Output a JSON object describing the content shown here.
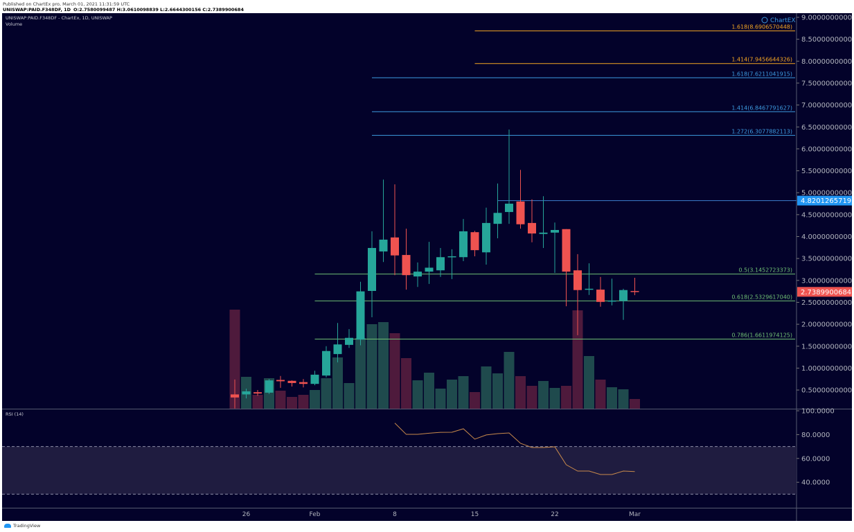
{
  "header": {
    "published": "Published on ChartEx pro, March 01, 2021 11:31:59 UTC",
    "symbol": "UNISWAP:PAID.F348DF, 1D",
    "ohlc": "O:2.7580099487 H:3.0610098839 L:2.6644300156 C:2.7389900684"
  },
  "legend": {
    "title": "UNISWAP:PAID.F348DF - ChartEx, 1D, UNISWAP",
    "volume": "Volume",
    "rsi": "RSI (14)"
  },
  "branding": {
    "chartex": "ChartEX",
    "tradingview": "TradingView"
  },
  "colors": {
    "background": "#03022a",
    "up": "#26a69a",
    "down": "#ef5350",
    "up_volume": "#1f4a4d",
    "down_volume": "#4e1a3c",
    "fib_orange": "#f5a623",
    "fib_blue": "#3d9be0",
    "fib_green": "#6fbf73",
    "rsi_line": "#c98a4b",
    "axis_text": "#b2b5be"
  },
  "chart_data": {
    "type": "candlestick",
    "title": "UNISWAP:PAID.F348DF - ChartEx, 1D, UNISWAP",
    "x_tick_labels": [
      {
        "i": 1,
        "label": "26"
      },
      {
        "i": 7,
        "label": "Feb"
      },
      {
        "i": 14,
        "label": "8"
      },
      {
        "i": 21,
        "label": "15"
      },
      {
        "i": 28,
        "label": "22"
      },
      {
        "i": 35,
        "label": "Mar"
      }
    ],
    "price_ylim": [
      0,
      9
    ],
    "price_ticks": [
      9.0,
      8.5,
      8.0,
      7.5,
      7.0,
      6.5,
      6.0,
      5.5,
      5.0,
      4.5,
      4.0,
      3.5,
      3.0,
      2.5,
      2.0,
      1.5,
      1.0,
      0.5
    ],
    "candles": [
      [
        0.4,
        0.74,
        0.08,
        0.33
      ],
      [
        0.4,
        0.53,
        0.31,
        0.47
      ],
      [
        0.45,
        0.5,
        0.37,
        0.42
      ],
      [
        0.44,
        0.75,
        0.41,
        0.72
      ],
      [
        0.73,
        0.82,
        0.55,
        0.7
      ],
      [
        0.71,
        0.72,
        0.58,
        0.66
      ],
      [
        0.68,
        0.75,
        0.56,
        0.64
      ],
      [
        0.64,
        0.94,
        0.61,
        0.85
      ],
      [
        0.83,
        1.5,
        0.79,
        1.39
      ],
      [
        1.32,
        2.03,
        1.13,
        1.54
      ],
      [
        1.53,
        1.89,
        1.46,
        1.69
      ],
      [
        1.65,
        2.97,
        1.52,
        2.75
      ],
      [
        2.76,
        4.12,
        2.16,
        3.74
      ],
      [
        3.66,
        5.3,
        3.42,
        3.93
      ],
      [
        3.98,
        5.19,
        3.12,
        3.57
      ],
      [
        3.58,
        4.18,
        2.79,
        3.12
      ],
      [
        3.09,
        3.41,
        2.85,
        3.2
      ],
      [
        3.2,
        3.88,
        2.92,
        3.29
      ],
      [
        3.23,
        3.74,
        3.08,
        3.53
      ],
      [
        3.53,
        3.71,
        3.03,
        3.55
      ],
      [
        3.53,
        4.4,
        3.44,
        4.12
      ],
      [
        4.1,
        4.13,
        3.55,
        3.69
      ],
      [
        3.64,
        4.66,
        3.36,
        4.31
      ],
      [
        4.29,
        5.21,
        3.96,
        4.54
      ],
      [
        4.56,
        6.44,
        4.29,
        4.75
      ],
      [
        4.8,
        5.52,
        4.18,
        4.28
      ],
      [
        4.31,
        4.85,
        3.87,
        4.07
      ],
      [
        4.06,
        4.92,
        3.74,
        4.09
      ],
      [
        4.09,
        4.32,
        3.17,
        4.15
      ],
      [
        4.17,
        4.17,
        2.41,
        3.2
      ],
      [
        3.23,
        3.6,
        1.75,
        2.78
      ],
      [
        2.79,
        3.39,
        2.67,
        2.81
      ],
      [
        2.79,
        3.08,
        2.4,
        2.51
      ],
      [
        2.53,
        3.04,
        2.43,
        2.54
      ],
      [
        2.53,
        2.81,
        2.1,
        2.78
      ],
      [
        2.758,
        3.061,
        2.664,
        2.739
      ]
    ],
    "candle_format": "[open, high, low, close]",
    "volume_relative": [
      143,
      46,
      20,
      44,
      26,
      17,
      20,
      27,
      44,
      74,
      37,
      102,
      122,
      125,
      109,
      73,
      41,
      52,
      29,
      42,
      47,
      24,
      61,
      51,
      82,
      47,
      33,
      40,
      30,
      33,
      142,
      76,
      42,
      31,
      28,
      14
    ],
    "rsi": {
      "start_index": 14,
      "values": [
        89.7,
        80.2,
        80.2,
        81.2,
        81.9,
        82.0,
        84.9,
        76.2,
        79.7,
        80.8,
        81.4,
        72.7,
        69.2,
        69.2,
        69.8,
        54.7,
        49.4,
        49.4,
        46.5,
        46.5,
        49.4,
        49.0
      ],
      "ylim": [
        20,
        100
      ],
      "ticks": [
        "100.0000",
        "80.0000",
        "60.0000",
        "40.0000"
      ],
      "band": [
        30,
        70
      ]
    },
    "fib_levels": [
      {
        "label": "1.618(8.6906570448)",
        "price": 8.6906570448,
        "color": "fib_orange",
        "start_index": 21
      },
      {
        "label": "1.414(7.9456644326)",
        "price": 7.9456644326,
        "color": "fib_orange",
        "start_index": 21
      },
      {
        "label": "1.618(7.6211041915)",
        "price": 7.6211041915,
        "color": "fib_blue",
        "start_index": 12
      },
      {
        "label": "1.414(6.8467791627)",
        "price": 6.8467791627,
        "color": "fib_blue",
        "start_index": 12
      },
      {
        "label": "1.272(6.3077882113)",
        "price": 6.3077882113,
        "color": "fib_blue",
        "start_index": 12
      },
      {
        "label": "0.5(3.1452723373)",
        "price": 3.1452723373,
        "color": "fib_green",
        "start_index": 7
      },
      {
        "label": "0.618(2.5329617040)",
        "price": 2.532961704,
        "color": "fib_green",
        "start_index": 7
      },
      {
        "label": "0.786(1.6611974125)",
        "price": 1.6611974125,
        "color": "fib_green",
        "start_index": 7
      }
    ],
    "horizontal_line": {
      "price": 4.8201265719,
      "label": "4.8201265719",
      "start_index": 23
    },
    "last_price": {
      "price": 2.7389900684,
      "label": "2.7389900684"
    }
  }
}
